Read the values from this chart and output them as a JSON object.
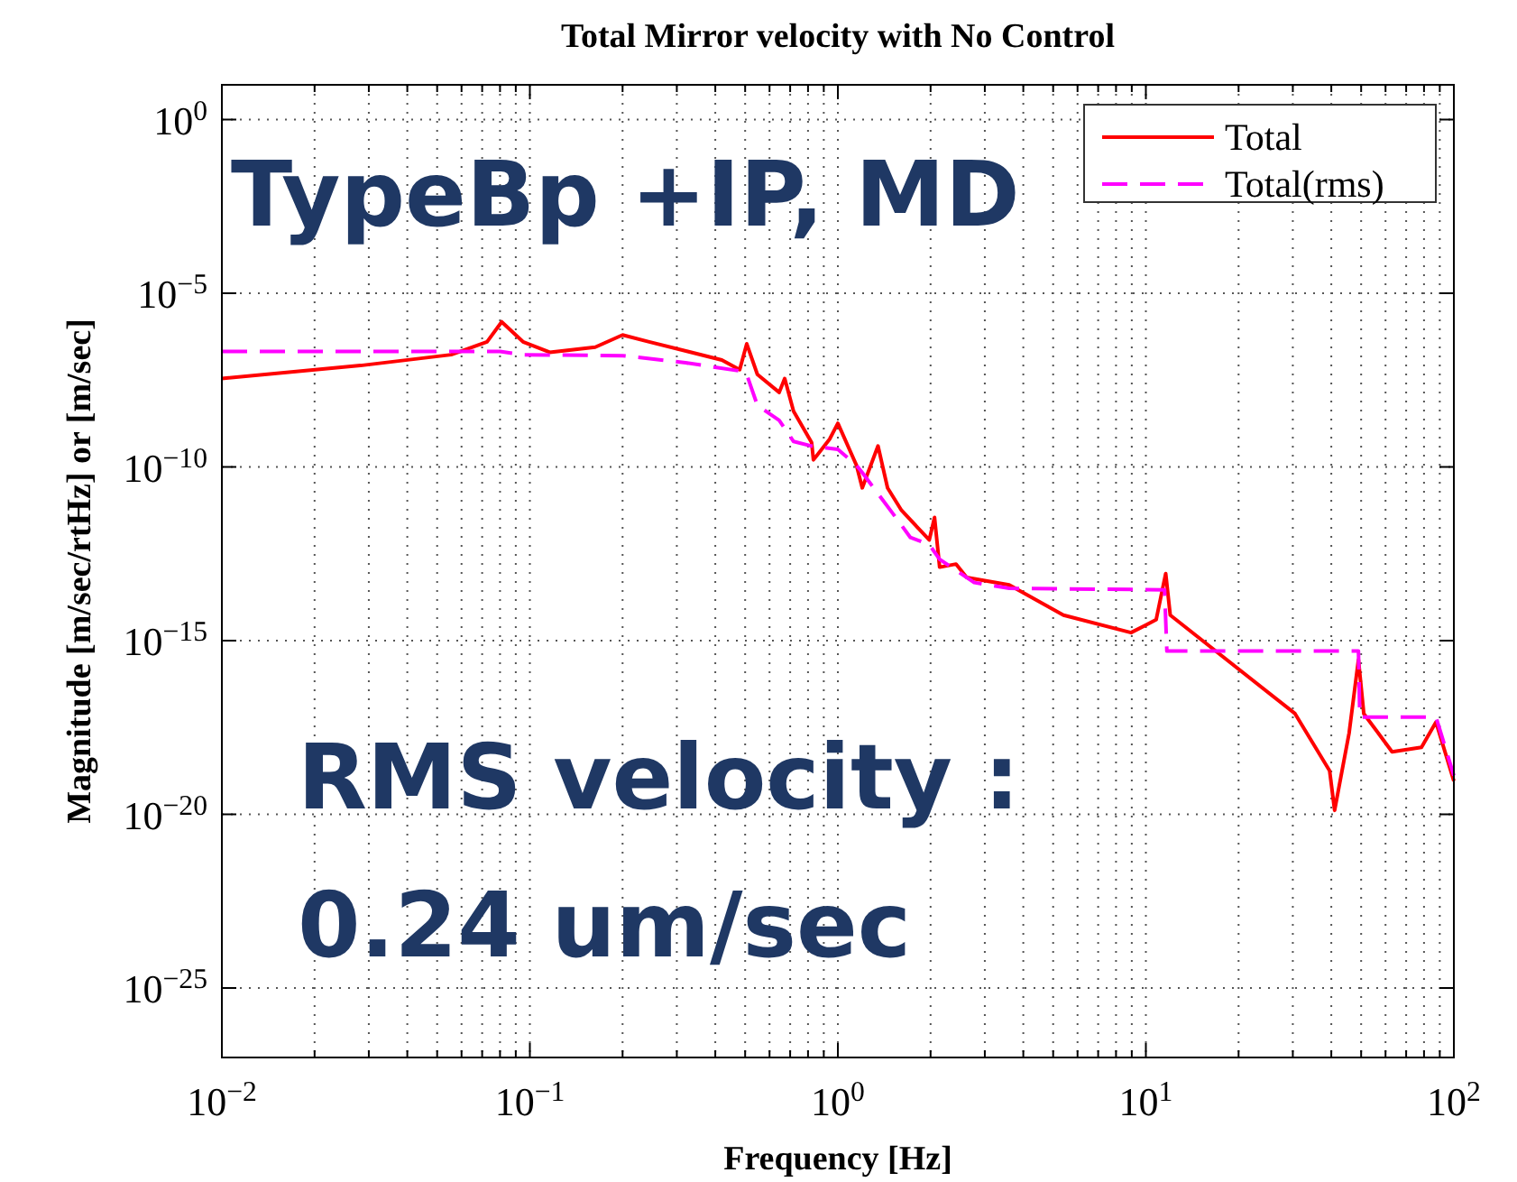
{
  "chart_data": {
    "type": "line",
    "title": "Total Mirror velocity with No Control",
    "xlabel": "Frequency [Hz]",
    "ylabel": "Magnitude [m/sec/rtHz] or [m/sec]",
    "log": "xy",
    "grid": true,
    "legend": "top right",
    "xlim": [
      0.01,
      100
    ],
    "ylim": [
      1e-27,
      10
    ],
    "xticks": [
      {
        "value": 0.01,
        "label": "10$^{−2}$"
      },
      {
        "value": 0.1,
        "label": "10$^{−1}$"
      },
      {
        "value": 1,
        "label": "10$^{0}$"
      },
      {
        "value": 10,
        "label": "10$^{1}$"
      },
      {
        "value": 100,
        "label": "10$^{2}$"
      }
    ],
    "yticks": [
      {
        "value": 1e-25,
        "label": "10$^{−25}$"
      },
      {
        "value": 1e-20,
        "label": "10$^{−20}$"
      },
      {
        "value": 1e-15,
        "label": "10$^{−15}$"
      },
      {
        "value": 1e-10,
        "label": "10$^{−10}$"
      },
      {
        "value": 1e-05,
        "label": "10$^{−5}$"
      },
      {
        "value": 1,
        "label": "10$^{0}$"
      }
    ],
    "annotations": [
      "TypeBp +IP, MD",
      "RMS velocity :",
      "0.24 um/sec"
    ],
    "series": [
      {
        "name": "Total",
        "color": "#ff0000",
        "line_style": "solid",
        "x": [
          0.01,
          0.0282,
          0.0555,
          0.0726,
          0.081,
          0.095,
          0.116,
          0.163,
          0.2,
          0.244,
          0.42,
          0.48,
          0.506,
          0.548,
          0.645,
          0.672,
          0.718,
          0.822,
          0.833,
          0.94,
          1.0,
          1.15,
          1.2,
          1.35,
          1.45,
          1.61,
          1.98,
          2.06,
          2.14,
          2.42,
          2.62,
          3.6,
          5.4,
          8.95,
          10.8,
          11.6,
          12.0,
          30.5,
          39.5,
          41,
          45.7,
          49,
          51,
          63,
          78.5,
          87.5,
          100
        ],
        "values": [
          3.5e-08,
          8.3e-08,
          1.7e-07,
          4e-07,
          1.5e-06,
          4e-07,
          2e-07,
          2.8e-07,
          6.3e-07,
          4e-07,
          1.2e-07,
          6.3e-08,
          3.5e-07,
          4.6e-08,
          1.4e-08,
          3.5e-08,
          4e-09,
          5e-10,
          1.6e-10,
          6.3e-10,
          1.8e-09,
          1.1e-10,
          2.5e-11,
          4e-10,
          2.5e-11,
          5.6e-12,
          7.9e-13,
          3.5e-12,
          1.3e-13,
          1.6e-13,
          6.6e-14,
          4e-14,
          5.4e-15,
          1.7e-15,
          4e-15,
          8.5e-14,
          5.4e-15,
          7.9e-18,
          1.8e-19,
          1.3e-20,
          2.2e-18,
          2.8e-16,
          7.9e-18,
          6.3e-19,
          8.5e-19,
          4.5e-18,
          9.1e-20
        ]
      },
      {
        "name": "Total(rms)",
        "color": "#ff00ff",
        "line_style": "dashed",
        "x": [
          0.01,
          0.08,
          0.095,
          0.2,
          0.32,
          0.48,
          0.506,
          0.548,
          0.645,
          0.718,
          0.822,
          1.0,
          1.15,
          1.2,
          1.51,
          1.72,
          1.98,
          2.14,
          2.77,
          3.6,
          11.5,
          11.7,
          49,
          49.5,
          87.5,
          100
        ],
        "values": [
          2.1e-07,
          2.1e-07,
          1.7e-07,
          1.6e-07,
          1e-07,
          5.8e-08,
          4.6e-08,
          5.9e-09,
          2.2e-09,
          5.4e-10,
          4e-10,
          3.2e-10,
          1.1e-10,
          6.9e-11,
          4.5e-12,
          9.3e-13,
          5.8e-13,
          2.2e-13,
          4.7e-14,
          3.2e-14,
          2.9e-14,
          5e-16,
          5e-16,
          6.3e-18,
          6.3e-18,
          1.3e-19
        ]
      }
    ]
  }
}
